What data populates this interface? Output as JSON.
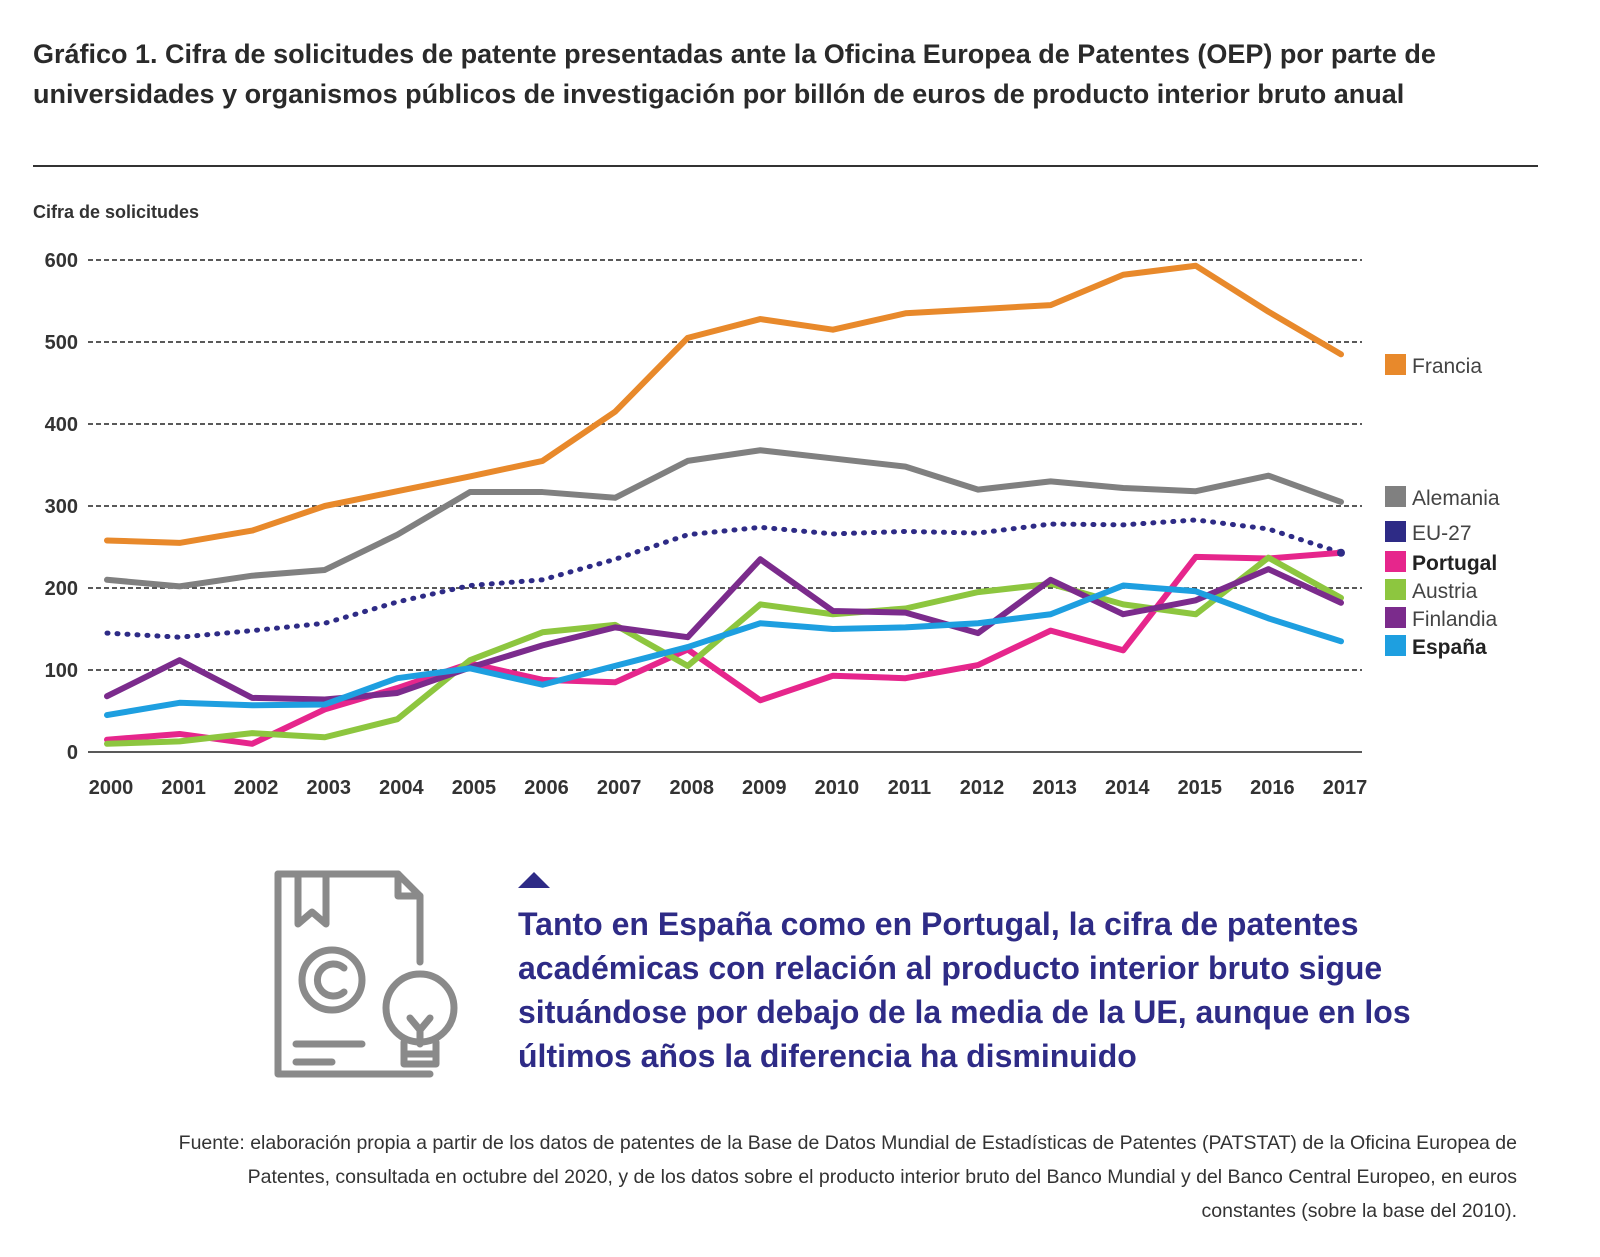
{
  "title": "Gráfico 1. Cifra de solicitudes de patente presentadas ante la Oficina Europea de Patentes (OEP) por parte de universidades y organismos públicos de investigación por billón de euros de producto interior bruto anual",
  "callout": "Tanto en España como en Portugal, la cifra de patentes académicas con relación al producto interior bruto sigue situándose por debajo de la media de la UE, aunque en los últimos años la diferencia ha disminuido",
  "source": "Fuente: elaboración propia a partir de los datos de patentes de la Base de Datos Mundial de Estadísticas de Patentes (PATSTAT) de la Oficina Europea de Patentes, consultada en octubre del 2020, y de los datos sobre el producto interior bruto del Banco Mundial y del Banco Central Europeo, en euros constantes (sobre la base del 2010).",
  "icons": {
    "document": "certificate-document-icon",
    "idea": "light-bulb-icon",
    "marker": "triangle-marker-icon"
  },
  "chart_data": {
    "type": "line",
    "ylabel": "Cifra de solicitudes",
    "xlabel": "",
    "ylim": [
      0,
      600
    ],
    "yticks": [
      "0",
      "100",
      "200",
      "300",
      "400",
      "500",
      "600"
    ],
    "categories": [
      "2000",
      "2001",
      "2002",
      "2003",
      "2004",
      "2005",
      "2006",
      "2007",
      "2008",
      "2009",
      "2010",
      "2011",
      "2012",
      "2013",
      "2014",
      "2015",
      "2016",
      "2017"
    ],
    "grid": "dashed horizontal",
    "legend_position": "right",
    "series": [
      {
        "name": "Francia",
        "color": "#e8892b",
        "style": "solid",
        "bold": false,
        "values": [
          258,
          255,
          270,
          300,
          318,
          336,
          355,
          415,
          505,
          528,
          515,
          535,
          540,
          545,
          582,
          593,
          537,
          485
        ]
      },
      {
        "name": "Alemania",
        "color": "#808080",
        "style": "solid",
        "bold": false,
        "values": [
          210,
          202,
          215,
          222,
          265,
          317,
          317,
          310,
          355,
          368,
          358,
          348,
          320,
          330,
          322,
          318,
          337,
          305
        ]
      },
      {
        "name": "EU-27",
        "color": "#2e2b86",
        "style": "dotted",
        "bold": false,
        "values": [
          145,
          140,
          148,
          157,
          183,
          203,
          210,
          235,
          265,
          274,
          266,
          269,
          267,
          278,
          277,
          283,
          272,
          243
        ]
      },
      {
        "name": "Portugal",
        "color": "#e6268c",
        "style": "solid",
        "bold": true,
        "values": [
          15,
          22,
          10,
          52,
          78,
          108,
          88,
          85,
          125,
          63,
          93,
          90,
          106,
          148,
          124,
          238,
          236,
          243
        ]
      },
      {
        "name": "Austria",
        "color": "#8dc63f",
        "style": "solid",
        "bold": false,
        "values": [
          10,
          13,
          23,
          18,
          40,
          112,
          146,
          155,
          105,
          180,
          168,
          175,
          195,
          205,
          180,
          168,
          237,
          188
        ]
      },
      {
        "name": "Finlandia",
        "color": "#7b2b8c",
        "style": "solid",
        "bold": false,
        "values": [
          68,
          112,
          66,
          64,
          72,
          103,
          130,
          152,
          140,
          235,
          172,
          170,
          145,
          210,
          168,
          185,
          223,
          182
        ]
      },
      {
        "name": "España",
        "color": "#1e9fe0",
        "style": "solid",
        "bold": true,
        "values": [
          45,
          60,
          57,
          58,
          90,
          102,
          82,
          105,
          128,
          157,
          150,
          152,
          157,
          168,
          203,
          196,
          163,
          135
        ]
      }
    ]
  }
}
